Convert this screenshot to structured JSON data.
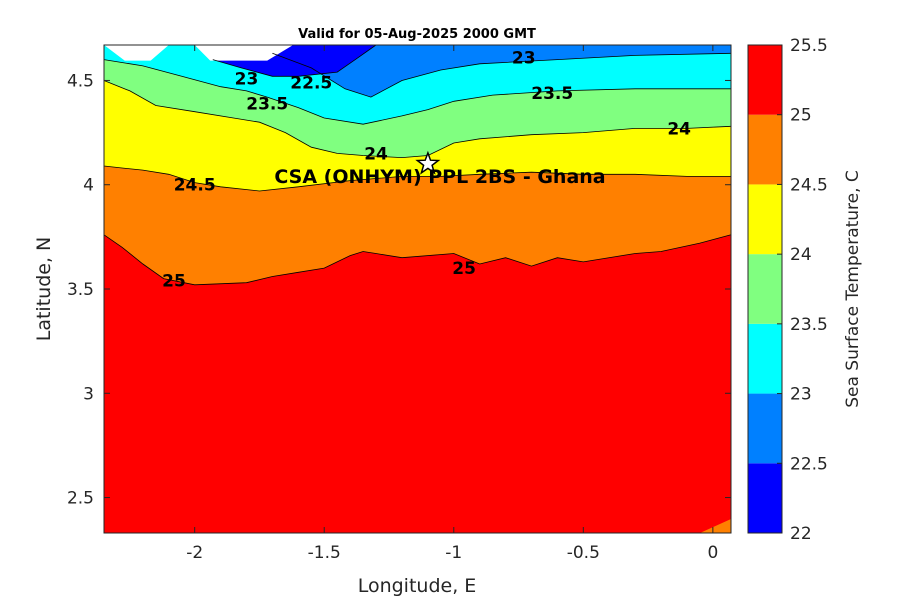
{
  "chart_data": {
    "type": "filled-contour",
    "title": "Valid for 05-Aug-2025 2000 GMT",
    "xlabel": "Longitude, E",
    "ylabel": "Latitude, N",
    "xlim": [
      -2.35,
      0.07
    ],
    "ylim": [
      2.33,
      4.67
    ],
    "xticks": [
      -2,
      -1.5,
      -1,
      -0.5,
      0
    ],
    "xtick_labels": [
      "-2",
      "-1.5",
      "-1",
      "-0.5",
      "0"
    ],
    "yticks": [
      2.5,
      3,
      3.5,
      4,
      4.5
    ],
    "ytick_labels": [
      "2.5",
      "3",
      "3.5",
      "4",
      "4.5"
    ],
    "colorbar": {
      "label": "Sea Surface Temperature, C",
      "levels": [
        22,
        22.5,
        23,
        23.5,
        24,
        24.5,
        25,
        25.5
      ],
      "tick_labels": [
        "22",
        "22.5",
        "23",
        "23.5",
        "24",
        "24.5",
        "25",
        "25.5"
      ],
      "colors": [
        "#0000ff",
        "#0080ff",
        "#00ffff",
        "#80ff80",
        "#ffff00",
        "#ff8000",
        "#ff0000"
      ]
    },
    "isotherms": [
      {
        "level": 25,
        "points": [
          [
            -2.35,
            3.76
          ],
          [
            -2.28,
            3.7
          ],
          [
            -2.2,
            3.62
          ],
          [
            -2.12,
            3.55
          ],
          [
            -2.0,
            3.52
          ],
          [
            -1.8,
            3.53
          ],
          [
            -1.7,
            3.56
          ],
          [
            -1.6,
            3.58
          ],
          [
            -1.5,
            3.6
          ],
          [
            -1.4,
            3.66
          ],
          [
            -1.35,
            3.68
          ],
          [
            -1.3,
            3.67
          ],
          [
            -1.2,
            3.65
          ],
          [
            -1.0,
            3.67
          ],
          [
            -0.9,
            3.62
          ],
          [
            -0.8,
            3.65
          ],
          [
            -0.7,
            3.61
          ],
          [
            -0.6,
            3.65
          ],
          [
            -0.5,
            3.63
          ],
          [
            -0.3,
            3.67
          ],
          [
            -0.2,
            3.68
          ],
          [
            -0.05,
            3.72
          ],
          [
            0.07,
            3.76
          ]
        ]
      },
      {
        "level": 24.5,
        "points": [
          [
            -2.35,
            4.09
          ],
          [
            -2.28,
            4.08
          ],
          [
            -2.2,
            4.07
          ],
          [
            -2.1,
            4.05
          ],
          [
            -2.0,
            4.01
          ],
          [
            -1.9,
            3.99
          ],
          [
            -1.75,
            3.97
          ],
          [
            -1.6,
            3.99
          ],
          [
            -1.4,
            4.02
          ],
          [
            -1.2,
            4.04
          ],
          [
            -1.05,
            4.04
          ],
          [
            -0.9,
            4.05
          ],
          [
            -0.7,
            4.06
          ],
          [
            -0.5,
            4.05
          ],
          [
            -0.3,
            4.05
          ],
          [
            -0.1,
            4.04
          ],
          [
            0.07,
            4.04
          ]
        ]
      },
      {
        "level": 24,
        "points": [
          [
            -2.35,
            4.5
          ],
          [
            -2.25,
            4.45
          ],
          [
            -2.15,
            4.38
          ],
          [
            -2.0,
            4.35
          ],
          [
            -1.85,
            4.32
          ],
          [
            -1.75,
            4.3
          ],
          [
            -1.65,
            4.25
          ],
          [
            -1.55,
            4.18
          ],
          [
            -1.45,
            4.15
          ],
          [
            -1.35,
            4.14
          ],
          [
            -1.2,
            4.13
          ],
          [
            -1.1,
            4.14
          ],
          [
            -1.0,
            4.2
          ],
          [
            -0.9,
            4.22
          ],
          [
            -0.7,
            4.24
          ],
          [
            -0.5,
            4.25
          ],
          [
            -0.3,
            4.27
          ],
          [
            -0.1,
            4.27
          ],
          [
            0.07,
            4.28
          ]
        ]
      },
      {
        "level": 23.5,
        "points": [
          [
            -2.35,
            4.6
          ],
          [
            -2.2,
            4.57
          ],
          [
            -2.05,
            4.52
          ],
          [
            -1.9,
            4.47
          ],
          [
            -1.8,
            4.45
          ],
          [
            -1.72,
            4.42
          ],
          [
            -1.6,
            4.37
          ],
          [
            -1.5,
            4.32
          ],
          [
            -1.35,
            4.29
          ],
          [
            -1.2,
            4.33
          ],
          [
            -1.1,
            4.36
          ],
          [
            -1.0,
            4.4
          ],
          [
            -0.85,
            4.43
          ],
          [
            -0.6,
            4.45
          ],
          [
            -0.3,
            4.46
          ],
          [
            0.07,
            4.46
          ]
        ]
      },
      {
        "level": 23,
        "points": [
          [
            -1.7,
            4.63
          ],
          [
            -1.55,
            4.56
          ],
          [
            -1.42,
            4.46
          ],
          [
            -1.32,
            4.42
          ],
          [
            -1.2,
            4.5
          ],
          [
            -1.05,
            4.55
          ],
          [
            -0.9,
            4.58
          ],
          [
            -0.6,
            4.6
          ],
          [
            -0.3,
            4.62
          ],
          [
            0.07,
            4.63
          ]
        ]
      },
      {
        "level": 22.5,
        "points": [
          [
            -1.93,
            4.6
          ],
          [
            -1.82,
            4.56
          ],
          [
            -1.7,
            4.52
          ],
          [
            -1.6,
            4.52
          ],
          [
            -1.45,
            4.54
          ],
          [
            -1.38,
            4.6
          ],
          [
            -1.3,
            4.67
          ]
        ]
      }
    ],
    "contour_labels": [
      {
        "text": "25",
        "x": -2.08,
        "y": 3.54
      },
      {
        "text": "25",
        "x": -0.96,
        "y": 3.6
      },
      {
        "text": "24.5",
        "x": -2.0,
        "y": 4.0
      },
      {
        "text": "24",
        "x": -1.3,
        "y": 4.15
      },
      {
        "text": "24",
        "x": -0.13,
        "y": 4.27
      },
      {
        "text": "23.5",
        "x": -1.72,
        "y": 4.39
      },
      {
        "text": "23.5",
        "x": -0.62,
        "y": 4.44
      },
      {
        "text": "23",
        "x": -0.73,
        "y": 4.61
      },
      {
        "text": "23",
        "x": -1.8,
        "y": 4.51
      },
      {
        "text": "22.5",
        "x": -1.55,
        "y": 4.49
      }
    ],
    "marker": {
      "type": "star",
      "x": -1.1,
      "y": 4.1,
      "label": "CSA (ONHYM) PPL 2BS - Ghana"
    }
  }
}
